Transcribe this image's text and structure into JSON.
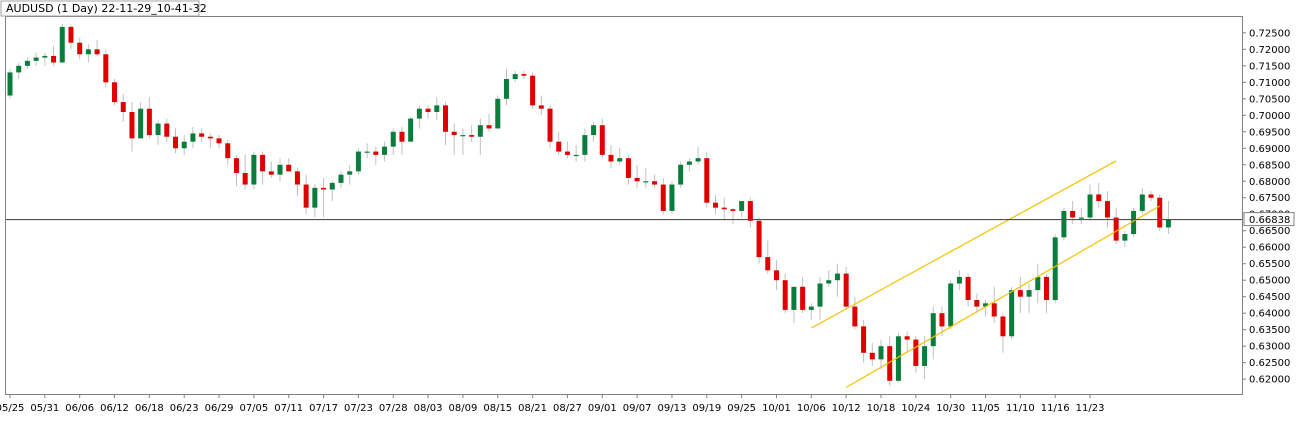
{
  "chart_data": {
    "type": "candlestick",
    "title": "AUDUSD (1 Day) 22-11-29_10-41-32",
    "symbol": "AUDUSD",
    "timeframe": "1 Day",
    "ylim": [
      0.6155,
      0.7298
    ],
    "y_ticks": [
      "0.72500",
      "0.72000",
      "0.71500",
      "0.71000",
      "0.70500",
      "0.70000",
      "0.69500",
      "0.69000",
      "0.68500",
      "0.68000",
      "0.67500",
      "0.67000",
      "0.66500",
      "0.66000",
      "0.65500",
      "0.65000",
      "0.64500",
      "0.64000",
      "0.63500",
      "0.63000",
      "0.62500",
      "0.62000"
    ],
    "x_ticks": [
      {
        "label": "05/25",
        "index": 0
      },
      {
        "label": "05/31",
        "index": 4
      },
      {
        "label": "06/06",
        "index": 8
      },
      {
        "label": "06/12",
        "index": 12
      },
      {
        "label": "06/18",
        "index": 16
      },
      {
        "label": "06/23",
        "index": 20
      },
      {
        "label": "06/29",
        "index": 24
      },
      {
        "label": "07/05",
        "index": 28
      },
      {
        "label": "07/11",
        "index": 32
      },
      {
        "label": "07/17",
        "index": 36
      },
      {
        "label": "07/23",
        "index": 40
      },
      {
        "label": "07/28",
        "index": 44
      },
      {
        "label": "08/03",
        "index": 48
      },
      {
        "label": "08/09",
        "index": 52
      },
      {
        "label": "08/15",
        "index": 56
      },
      {
        "label": "08/21",
        "index": 60
      },
      {
        "label": "08/27",
        "index": 64
      },
      {
        "label": "09/01",
        "index": 68
      },
      {
        "label": "09/07",
        "index": 72
      },
      {
        "label": "09/13",
        "index": 76
      },
      {
        "label": "09/19",
        "index": 80
      },
      {
        "label": "09/25",
        "index": 84
      },
      {
        "label": "10/01",
        "index": 88
      },
      {
        "label": "10/06",
        "index": 92
      },
      {
        "label": "10/12",
        "index": 96
      },
      {
        "label": "10/18",
        "index": 100
      },
      {
        "label": "10/24",
        "index": 104
      },
      {
        "label": "10/30",
        "index": 108
      },
      {
        "label": "11/05",
        "index": 112
      },
      {
        "label": "11/10",
        "index": 116
      },
      {
        "label": "11/16",
        "index": 120
      },
      {
        "label": "11/23",
        "index": 124
      }
    ],
    "current_price": "0.66838",
    "current_price_value": 0.66838,
    "colors": {
      "up": "#0a7d3c",
      "down": "#e00000",
      "wick": "#c0c0c0",
      "trendline": "#f2c200",
      "price_line": "#505050"
    },
    "trendlines": [
      {
        "from": [
          92,
          0.6355
        ],
        "to": [
          127,
          0.6862
        ]
      },
      {
        "from": [
          96,
          0.6175
        ],
        "to": [
          132,
          0.6725
        ]
      }
    ],
    "candles": [
      [
        0.706,
        0.714,
        0.705,
        0.713
      ],
      [
        0.713,
        0.716,
        0.711,
        0.715
      ],
      [
        0.715,
        0.7175,
        0.714,
        0.7165
      ],
      [
        0.7165,
        0.719,
        0.715,
        0.7175
      ],
      [
        0.7175,
        0.719,
        0.715,
        0.718
      ],
      [
        0.718,
        0.721,
        0.715,
        0.716
      ],
      [
        0.716,
        0.7278,
        0.716,
        0.7268
      ],
      [
        0.7268,
        0.7275,
        0.72,
        0.722
      ],
      [
        0.722,
        0.7235,
        0.717,
        0.7185
      ],
      [
        0.7185,
        0.7215,
        0.716,
        0.72
      ],
      [
        0.72,
        0.7228,
        0.718,
        0.7185
      ],
      [
        0.7185,
        0.72,
        0.7085,
        0.71
      ],
      [
        0.71,
        0.711,
        0.703,
        0.704
      ],
      [
        0.704,
        0.7065,
        0.698,
        0.701
      ],
      [
        0.701,
        0.704,
        0.689,
        0.693
      ],
      [
        0.693,
        0.704,
        0.693,
        0.702
      ],
      [
        0.702,
        0.7055,
        0.693,
        0.694
      ],
      [
        0.694,
        0.6985,
        0.691,
        0.6975
      ],
      [
        0.6975,
        0.699,
        0.692,
        0.6935
      ],
      [
        0.6935,
        0.696,
        0.6885,
        0.69
      ],
      [
        0.69,
        0.694,
        0.688,
        0.692
      ],
      [
        0.692,
        0.6965,
        0.69,
        0.6945
      ],
      [
        0.6945,
        0.696,
        0.692,
        0.6935
      ],
      [
        0.6935,
        0.6945,
        0.69,
        0.693
      ],
      [
        0.693,
        0.694,
        0.69,
        0.6915
      ],
      [
        0.6915,
        0.6925,
        0.685,
        0.687
      ],
      [
        0.687,
        0.688,
        0.6785,
        0.6825
      ],
      [
        0.6825,
        0.688,
        0.6775,
        0.679
      ],
      [
        0.679,
        0.689,
        0.6775,
        0.688
      ],
      [
        0.688,
        0.689,
        0.679,
        0.683
      ],
      [
        0.683,
        0.686,
        0.681,
        0.682
      ],
      [
        0.682,
        0.687,
        0.68,
        0.685
      ],
      [
        0.685,
        0.687,
        0.683,
        0.683
      ],
      [
        0.683,
        0.684,
        0.6755,
        0.679
      ],
      [
        0.679,
        0.682,
        0.67,
        0.672
      ],
      [
        0.672,
        0.679,
        0.669,
        0.678
      ],
      [
        0.678,
        0.681,
        0.669,
        0.6775
      ],
      [
        0.6775,
        0.68,
        0.674,
        0.6795
      ],
      [
        0.6795,
        0.683,
        0.678,
        0.682
      ],
      [
        0.682,
        0.685,
        0.679,
        0.683
      ],
      [
        0.683,
        0.69,
        0.682,
        0.689
      ],
      [
        0.689,
        0.6915,
        0.687,
        0.689
      ],
      [
        0.689,
        0.6905,
        0.685,
        0.688
      ],
      [
        0.688,
        0.692,
        0.686,
        0.6905
      ],
      [
        0.6905,
        0.696,
        0.688,
        0.695
      ],
      [
        0.695,
        0.6965,
        0.688,
        0.692
      ],
      [
        0.692,
        0.6995,
        0.692,
        0.699
      ],
      [
        0.699,
        0.703,
        0.696,
        0.702
      ],
      [
        0.702,
        0.703,
        0.699,
        0.701
      ],
      [
        0.701,
        0.7055,
        0.6985,
        0.703
      ],
      [
        0.703,
        0.704,
        0.691,
        0.695
      ],
      [
        0.695,
        0.6975,
        0.688,
        0.694
      ],
      [
        0.694,
        0.696,
        0.688,
        0.694
      ],
      [
        0.694,
        0.697,
        0.692,
        0.6935
      ],
      [
        0.6935,
        0.699,
        0.688,
        0.697
      ],
      [
        0.697,
        0.7005,
        0.695,
        0.696
      ],
      [
        0.696,
        0.706,
        0.696,
        0.705
      ],
      [
        0.705,
        0.714,
        0.703,
        0.711
      ],
      [
        0.711,
        0.7135,
        0.71,
        0.7125
      ],
      [
        0.7125,
        0.7135,
        0.711,
        0.712
      ],
      [
        0.712,
        0.713,
        0.702,
        0.703
      ],
      [
        0.703,
        0.706,
        0.7,
        0.702
      ],
      [
        0.702,
        0.703,
        0.69,
        0.692
      ],
      [
        0.692,
        0.695,
        0.688,
        0.689
      ],
      [
        0.689,
        0.692,
        0.687,
        0.688
      ],
      [
        0.688,
        0.691,
        0.686,
        0.688
      ],
      [
        0.688,
        0.696,
        0.686,
        0.694
      ],
      [
        0.694,
        0.698,
        0.692,
        0.697
      ],
      [
        0.697,
        0.699,
        0.687,
        0.688
      ],
      [
        0.688,
        0.691,
        0.684,
        0.686
      ],
      [
        0.686,
        0.69,
        0.685,
        0.687
      ],
      [
        0.687,
        0.688,
        0.679,
        0.681
      ],
      [
        0.681,
        0.685,
        0.678,
        0.68
      ],
      [
        0.68,
        0.684,
        0.678,
        0.68
      ],
      [
        0.68,
        0.682,
        0.678,
        0.679
      ],
      [
        0.679,
        0.681,
        0.67,
        0.671
      ],
      [
        0.671,
        0.68,
        0.67,
        0.679
      ],
      [
        0.679,
        0.686,
        0.678,
        0.685
      ],
      [
        0.685,
        0.687,
        0.683,
        0.686
      ],
      [
        0.686,
        0.6905,
        0.685,
        0.687
      ],
      [
        0.687,
        0.689,
        0.672,
        0.6735
      ],
      [
        0.6735,
        0.676,
        0.67,
        0.672
      ],
      [
        0.672,
        0.675,
        0.668,
        0.6715
      ],
      [
        0.6715,
        0.672,
        0.667,
        0.671
      ],
      [
        0.671,
        0.674,
        0.669,
        0.674
      ],
      [
        0.674,
        0.675,
        0.666,
        0.668
      ],
      [
        0.668,
        0.669,
        0.655,
        0.657
      ],
      [
        0.657,
        0.662,
        0.652,
        0.653
      ],
      [
        0.653,
        0.656,
        0.647,
        0.65
      ],
      [
        0.65,
        0.652,
        0.64,
        0.641
      ],
      [
        0.641,
        0.648,
        0.637,
        0.648
      ],
      [
        0.648,
        0.651,
        0.64,
        0.641
      ],
      [
        0.641,
        0.643,
        0.638,
        0.642
      ],
      [
        0.642,
        0.651,
        0.638,
        0.649
      ],
      [
        0.649,
        0.653,
        0.648,
        0.65
      ],
      [
        0.65,
        0.655,
        0.645,
        0.652
      ],
      [
        0.652,
        0.654,
        0.641,
        0.642
      ],
      [
        0.642,
        0.645,
        0.635,
        0.636
      ],
      [
        0.636,
        0.638,
        0.625,
        0.628
      ],
      [
        0.628,
        0.631,
        0.624,
        0.626
      ],
      [
        0.626,
        0.632,
        0.623,
        0.63
      ],
      [
        0.63,
        0.633,
        0.618,
        0.6195
      ],
      [
        0.6195,
        0.634,
        0.619,
        0.633
      ],
      [
        0.633,
        0.6345,
        0.628,
        0.632
      ],
      [
        0.632,
        0.633,
        0.622,
        0.624
      ],
      [
        0.624,
        0.633,
        0.62,
        0.63
      ],
      [
        0.63,
        0.642,
        0.626,
        0.64
      ],
      [
        0.64,
        0.642,
        0.633,
        0.636
      ],
      [
        0.636,
        0.65,
        0.635,
        0.649
      ],
      [
        0.649,
        0.653,
        0.647,
        0.651
      ],
      [
        0.651,
        0.652,
        0.642,
        0.644
      ],
      [
        0.644,
        0.646,
        0.64,
        0.642
      ],
      [
        0.642,
        0.644,
        0.639,
        0.643
      ],
      [
        0.643,
        0.648,
        0.637,
        0.639
      ],
      [
        0.639,
        0.64,
        0.628,
        0.633
      ],
      [
        0.633,
        0.648,
        0.632,
        0.647
      ],
      [
        0.647,
        0.651,
        0.64,
        0.645
      ],
      [
        0.645,
        0.649,
        0.64,
        0.647
      ],
      [
        0.647,
        0.655,
        0.643,
        0.651
      ],
      [
        0.651,
        0.652,
        0.64,
        0.644
      ],
      [
        0.644,
        0.664,
        0.643,
        0.663
      ],
      [
        0.663,
        0.672,
        0.662,
        0.671
      ],
      [
        0.671,
        0.674,
        0.667,
        0.669
      ],
      [
        0.669,
        0.672,
        0.667,
        0.669
      ],
      [
        0.669,
        0.679,
        0.668,
        0.676
      ],
      [
        0.676,
        0.6795,
        0.672,
        0.674
      ],
      [
        0.674,
        0.677,
        0.666,
        0.669
      ],
      [
        0.669,
        0.672,
        0.661,
        0.662
      ],
      [
        0.662,
        0.665,
        0.66,
        0.664
      ],
      [
        0.664,
        0.672,
        0.663,
        0.671
      ],
      [
        0.671,
        0.678,
        0.67,
        0.676
      ],
      [
        0.676,
        0.677,
        0.674,
        0.675
      ],
      [
        0.675,
        0.676,
        0.665,
        0.666
      ],
      [
        0.666,
        0.674,
        0.664,
        0.6684
      ]
    ]
  }
}
